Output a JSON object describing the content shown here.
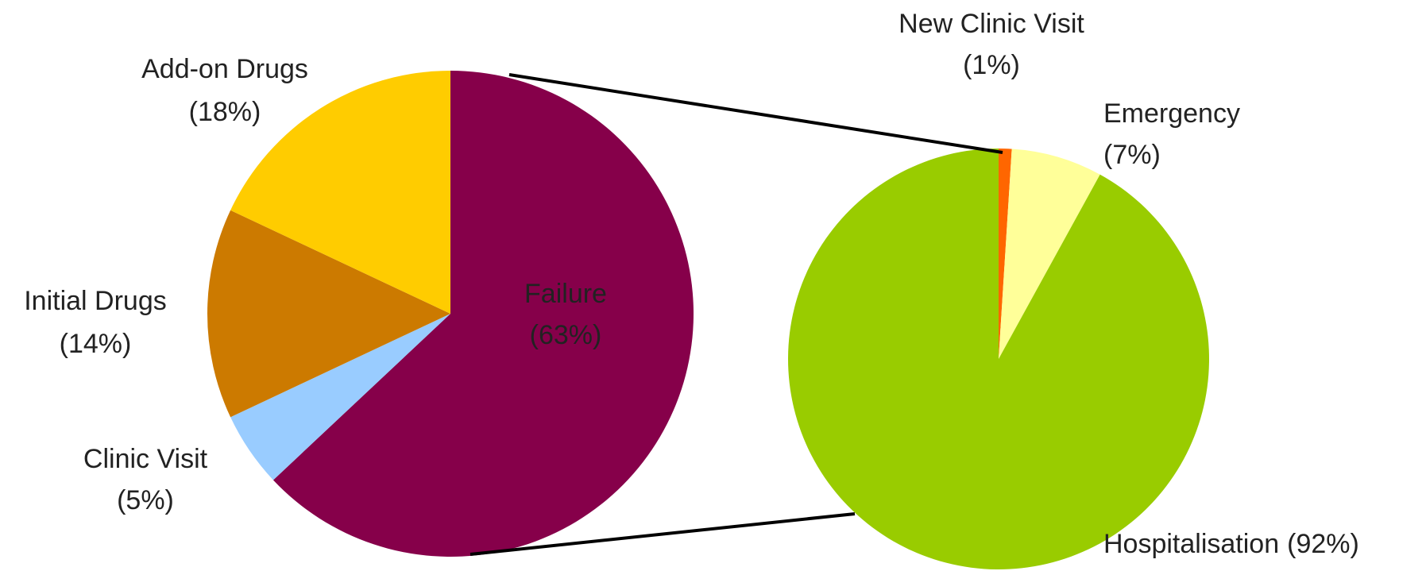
{
  "chart_data": [
    {
      "type": "pie",
      "categories": [
        "Failure",
        "Clinic Visit",
        "Initial Drugs",
        "Add-on Drugs"
      ],
      "values": [
        63,
        5,
        14,
        18
      ],
      "value_labels": [
        "(63%)",
        "(5%)",
        "(14%)",
        "(18%)"
      ],
      "colors": [
        "#86004a",
        "#99ccff",
        "#cc7a00",
        "#ffcc00"
      ]
    },
    {
      "type": "pie",
      "categories": [
        "New Clinic Visit",
        "Emergency",
        "Hospitalisation"
      ],
      "values": [
        1,
        7,
        92
      ],
      "value_labels": [
        "(1%)",
        "(7%)",
        "(92%)"
      ],
      "colors": [
        "#ff6600",
        "#ffff99",
        "#99cc00"
      ]
    }
  ]
}
